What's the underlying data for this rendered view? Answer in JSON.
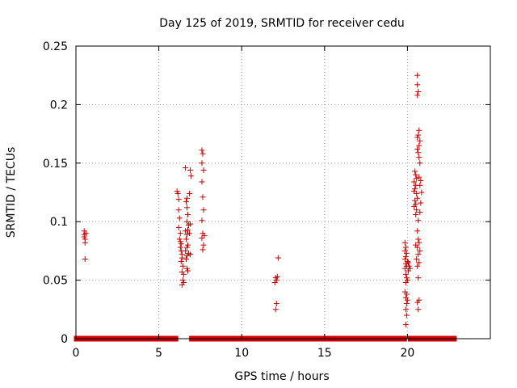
{
  "chart_data": {
    "type": "scatter",
    "title": "Day 125 of 2019, SRMTID for receiver cedu",
    "xlabel": "GPS time / hours",
    "ylabel": "SRMTID / TECUs",
    "xlim": [
      0,
      25
    ],
    "ylim": [
      0,
      0.25
    ],
    "grid": true,
    "series_color": "#cc0000",
    "x_ticks": [
      {
        "value": 0,
        "label": "0"
      },
      {
        "value": 5,
        "label": "5"
      },
      {
        "value": 10,
        "label": "10"
      },
      {
        "value": 15,
        "label": "15"
      },
      {
        "value": 20,
        "label": "20"
      }
    ],
    "y_ticks": [
      {
        "value": 0,
        "label": "0"
      },
      {
        "value": 0.05,
        "label": "0.05"
      },
      {
        "value": 0.1,
        "label": "0.1"
      },
      {
        "value": 0.15,
        "label": "0.15"
      },
      {
        "value": 0.2,
        "label": "0.2"
      },
      {
        "value": 0.25,
        "label": "0.25"
      }
    ],
    "zero_segments": [
      [
        0.05,
        2.1
      ],
      [
        2.3,
        2.8
      ],
      [
        3.0,
        3.3
      ],
      [
        3.5,
        6.0
      ],
      [
        7.0,
        9.3
      ],
      [
        9.6,
        19.8
      ],
      [
        20.2,
        22.8
      ]
    ],
    "points": [
      [
        0.5,
        0.092
      ],
      [
        0.5,
        0.089
      ],
      [
        0.5,
        0.087
      ],
      [
        0.55,
        0.085
      ],
      [
        0.55,
        0.082
      ],
      [
        0.6,
        0.09
      ],
      [
        0.55,
        0.068
      ],
      [
        6.1,
        0.126
      ],
      [
        6.15,
        0.124
      ],
      [
        6.2,
        0.119
      ],
      [
        6.2,
        0.11
      ],
      [
        6.25,
        0.103
      ],
      [
        6.2,
        0.095
      ],
      [
        6.3,
        0.09
      ],
      [
        6.25,
        0.085
      ],
      [
        6.3,
        0.083
      ],
      [
        6.35,
        0.081
      ],
      [
        6.3,
        0.078
      ],
      [
        6.35,
        0.075
      ],
      [
        6.4,
        0.072
      ],
      [
        6.4,
        0.069
      ],
      [
        6.35,
        0.066
      ],
      [
        6.45,
        0.062
      ],
      [
        6.4,
        0.057
      ],
      [
        6.5,
        0.055
      ],
      [
        6.45,
        0.05
      ],
      [
        6.4,
        0.046
      ],
      [
        6.5,
        0.048
      ],
      [
        6.6,
        0.146
      ],
      [
        6.7,
        0.12
      ],
      [
        6.65,
        0.117
      ],
      [
        6.7,
        0.112
      ],
      [
        6.75,
        0.106
      ],
      [
        6.7,
        0.1
      ],
      [
        6.8,
        0.097
      ],
      [
        6.75,
        0.093
      ],
      [
        6.6,
        0.092
      ],
      [
        6.7,
        0.089
      ],
      [
        6.65,
        0.085
      ],
      [
        6.75,
        0.08
      ],
      [
        6.7,
        0.078
      ],
      [
        6.6,
        0.075
      ],
      [
        6.8,
        0.073
      ],
      [
        6.7,
        0.071
      ],
      [
        6.65,
        0.068
      ],
      [
        6.7,
        0.06
      ],
      [
        6.75,
        0.058
      ],
      [
        6.9,
        0.144
      ],
      [
        6.95,
        0.139
      ],
      [
        6.85,
        0.124
      ],
      [
        6.9,
        0.098
      ],
      [
        6.85,
        0.09
      ],
      [
        6.9,
        0.072
      ],
      [
        7.6,
        0.161
      ],
      [
        7.65,
        0.158
      ],
      [
        7.6,
        0.15
      ],
      [
        7.7,
        0.144
      ],
      [
        7.6,
        0.134
      ],
      [
        7.65,
        0.121
      ],
      [
        7.7,
        0.11
      ],
      [
        7.6,
        0.101
      ],
      [
        7.65,
        0.09
      ],
      [
        7.75,
        0.088
      ],
      [
        7.6,
        0.086
      ],
      [
        7.7,
        0.08
      ],
      [
        7.65,
        0.076
      ],
      [
        12.05,
        0.052
      ],
      [
        12.1,
        0.05
      ],
      [
        12.0,
        0.048
      ],
      [
        12.15,
        0.053
      ],
      [
        12.2,
        0.069
      ],
      [
        12.1,
        0.03
      ],
      [
        12.05,
        0.025
      ],
      [
        19.85,
        0.082
      ],
      [
        19.9,
        0.078
      ],
      [
        19.85,
        0.075
      ],
      [
        19.95,
        0.073
      ],
      [
        19.9,
        0.07
      ],
      [
        19.85,
        0.068
      ],
      [
        20.0,
        0.066
      ],
      [
        19.9,
        0.064
      ],
      [
        19.95,
        0.062
      ],
      [
        19.85,
        0.06
      ],
      [
        20.05,
        0.058
      ],
      [
        19.9,
        0.055
      ],
      [
        19.95,
        0.052
      ],
      [
        20.0,
        0.05
      ],
      [
        19.9,
        0.048
      ],
      [
        19.85,
        0.04
      ],
      [
        19.95,
        0.038
      ],
      [
        19.9,
        0.035
      ],
      [
        20.0,
        0.033
      ],
      [
        19.95,
        0.03
      ],
      [
        19.9,
        0.025
      ],
      [
        19.95,
        0.02
      ],
      [
        19.9,
        0.012
      ],
      [
        20.1,
        0.062
      ],
      [
        20.15,
        0.06
      ],
      [
        20.05,
        0.065
      ],
      [
        20.6,
        0.225
      ],
      [
        20.6,
        0.217
      ],
      [
        20.65,
        0.211
      ],
      [
        20.6,
        0.208
      ],
      [
        20.7,
        0.178
      ],
      [
        20.65,
        0.174
      ],
      [
        20.6,
        0.172
      ],
      [
        20.75,
        0.169
      ],
      [
        20.7,
        0.165
      ],
      [
        20.6,
        0.162
      ],
      [
        20.65,
        0.159
      ],
      [
        20.7,
        0.155
      ],
      [
        20.75,
        0.15
      ],
      [
        20.45,
        0.143
      ],
      [
        20.5,
        0.14
      ],
      [
        20.55,
        0.137
      ],
      [
        20.4,
        0.134
      ],
      [
        20.5,
        0.131
      ],
      [
        20.45,
        0.128
      ],
      [
        20.4,
        0.126
      ],
      [
        20.55,
        0.124
      ],
      [
        20.6,
        0.12
      ],
      [
        20.45,
        0.118
      ],
      [
        20.5,
        0.115
      ],
      [
        20.4,
        0.113
      ],
      [
        20.55,
        0.11
      ],
      [
        20.5,
        0.106
      ],
      [
        20.65,
        0.101
      ],
      [
        20.7,
        0.138
      ],
      [
        20.8,
        0.135
      ],
      [
        20.75,
        0.131
      ],
      [
        20.85,
        0.125
      ],
      [
        20.8,
        0.116
      ],
      [
        20.75,
        0.108
      ],
      [
        20.6,
        0.092
      ],
      [
        20.65,
        0.085
      ],
      [
        20.7,
        0.082
      ],
      [
        20.6,
        0.078
      ],
      [
        20.75,
        0.075
      ],
      [
        20.65,
        0.072
      ],
      [
        20.7,
        0.065
      ],
      [
        20.6,
        0.062
      ],
      [
        20.65,
        0.052
      ],
      [
        20.7,
        0.033
      ],
      [
        20.6,
        0.031
      ],
      [
        20.65,
        0.025
      ],
      [
        20.5,
        0.08
      ],
      [
        20.55,
        0.068
      ]
    ]
  }
}
